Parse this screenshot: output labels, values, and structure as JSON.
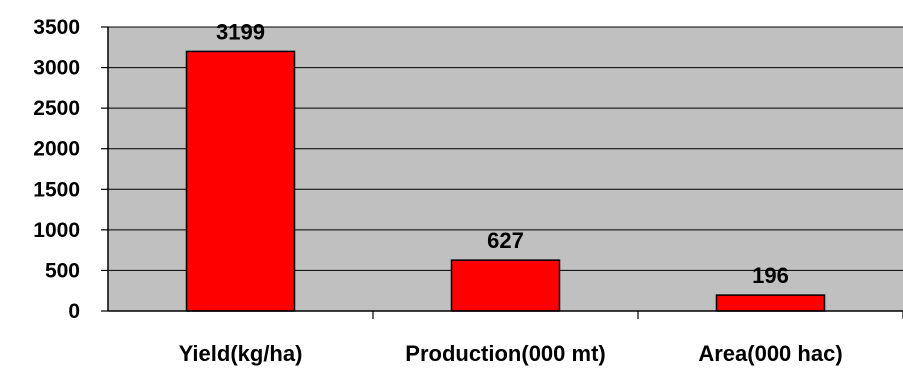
{
  "chart_data": {
    "type": "bar",
    "title": "",
    "xlabel": "",
    "ylabel": "",
    "categories": [
      "Yield(kg/ha)",
      "Production(000 mt)",
      "Area(000 hac)"
    ],
    "values": [
      3199,
      627,
      196
    ],
    "data_labels": [
      "3199",
      "627",
      "196"
    ],
    "ylim": [
      0,
      3500
    ],
    "yticks": [
      0,
      500,
      1000,
      1500,
      2000,
      2500,
      3000,
      3500
    ],
    "ytick_labels": [
      "0",
      "500",
      "1000",
      "1500",
      "2000",
      "2500",
      "3000",
      "3500"
    ],
    "grid": true,
    "legend": "none",
    "colors": {
      "bar": "#ff0000",
      "bar_border": "#000000",
      "plot_background": "#c0c0c0",
      "gridline": "#000000"
    }
  }
}
